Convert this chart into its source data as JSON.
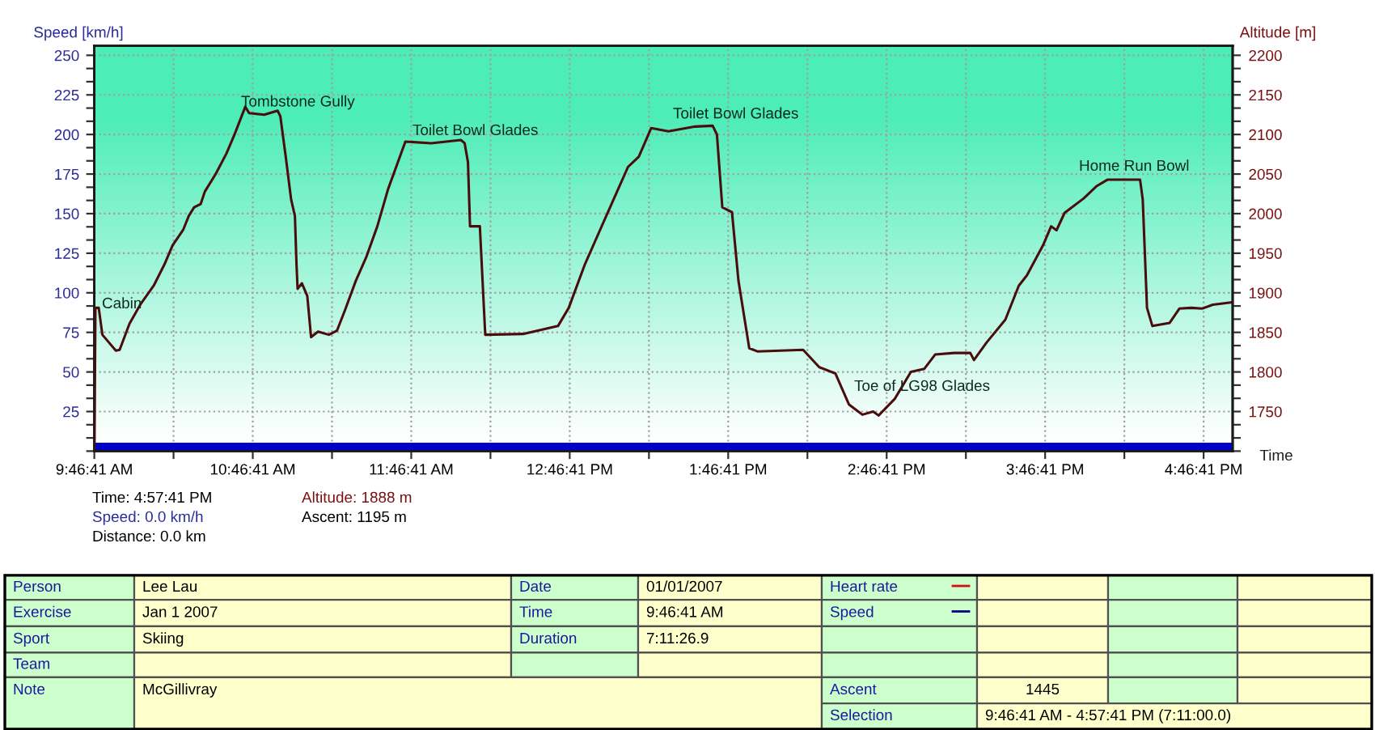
{
  "chart_data": {
    "type": "line",
    "xlabel": "Time",
    "ylabel": "Speed [km/h]",
    "y2label": "Altitude [m]",
    "annotations": [
      "Cabin",
      "Tombstone Gully",
      "Toilet Bowl Glades",
      "Toilet Bowl Glades",
      "Toe of LG98 Glades",
      "Home Run Bowl",
      "Time: 4:57:41 PM",
      "Speed: 0.0 km/h",
      "Distance: 0.0 km",
      "Altitude: 1888 m",
      "Ascent: 1195 m",
      "Person",
      "Lee Lau",
      "Date",
      "01/01/2007",
      "Heart rate",
      "Exercise",
      "Jan 1 2007",
      "Time",
      "9:46:41 AM",
      "Speed",
      "Sport",
      "Skiing",
      "Duration",
      "7:11:26.9",
      "Team",
      "Note",
      "McGillivray",
      "Ascent",
      "1445",
      "Selection",
      "9:46:41 AM - 4:57:41 PM (7:11:00.0)"
    ],
    "series": [
      {
        "axis": "y2",
        "color": "#4a0d0d",
        "x": [
          9.779,
          9.785,
          9.806,
          9.829,
          9.914,
          9.938,
          10.0,
          10.068,
          10.153,
          10.221,
          10.272,
          10.34,
          10.374,
          10.408,
          10.449,
          10.476,
          10.544,
          10.612,
          10.663,
          10.731,
          10.755,
          10.85,
          10.935,
          10.952,
          10.986,
          11.02,
          11.044,
          11.054,
          11.061,
          11.088,
          11.122,
          11.146,
          11.19,
          11.258,
          11.309,
          11.36,
          11.428,
          11.496,
          11.564,
          11.632,
          11.683,
          11.741,
          11.904,
          12.091,
          12.115,
          12.136,
          12.149,
          12.211,
          12.245,
          12.483,
          12.704,
          12.772,
          12.874,
          12.993,
          13.146,
          13.214,
          13.292,
          13.401,
          13.571,
          13.68,
          13.707,
          13.741,
          13.802,
          13.843,
          13.911,
          13.962,
          14.251,
          14.353,
          14.455,
          14.54,
          14.625,
          14.693,
          14.727,
          14.829,
          14.931,
          15.016,
          15.084,
          15.204,
          15.306,
          15.329,
          15.408,
          15.527,
          15.612,
          15.663,
          15.765,
          15.816,
          15.85,
          15.901,
          16.02,
          16.105,
          16.173,
          16.377,
          16.394,
          16.421,
          16.455,
          16.564,
          16.625,
          16.7,
          16.768,
          16.836,
          16.959
        ],
        "values": [
          1700,
          1881,
          1881,
          1847,
          1827,
          1828,
          1861,
          1885,
          1909,
          1936,
          1960,
          1980,
          1997,
          2008,
          2012,
          2028,
          2050,
          2076,
          2100,
          2135,
          2127,
          2125,
          2130,
          2123,
          2072,
          2018,
          1997,
          1936,
          1905,
          1912,
          1896,
          1844,
          1851,
          1847,
          1852,
          1878,
          1915,
          1946,
          1984,
          2031,
          2059,
          2091,
          2089,
          2093,
          2089,
          2065,
          1984,
          1984,
          1847,
          1848,
          1858,
          1881,
          1936,
          1990,
          2059,
          2072,
          2108,
          2104,
          2110,
          2111,
          2100,
          2008,
          2002,
          1915,
          1830,
          1826,
          1828,
          1806,
          1798,
          1759,
          1746,
          1750,
          1745,
          1766,
          1800,
          1804,
          1822,
          1824,
          1824,
          1815,
          1837,
          1866,
          1909,
          1922,
          1960,
          1984,
          1979,
          2001,
          2019,
          2035,
          2043,
          2043,
          2018,
          1881,
          1858,
          1862,
          1880,
          1881,
          1880,
          1885,
          1888
        ]
      },
      {
        "color": "#0000c8",
        "x": [
          9.7781,
          16.9614
        ],
        "values": [
          0,
          0
        ]
      }
    ],
    "xlim": [
      9.7781,
      16.9614
    ],
    "xticks": [
      {
        "value": 9.7781,
        "label": "9:46:41 AM"
      },
      {
        "value": 10.2781,
        "label": null
      },
      {
        "value": 10.7781,
        "label": "10:46:41 AM"
      },
      {
        "value": 11.2781,
        "label": null
      },
      {
        "value": 11.7781,
        "label": "11:46:41 AM"
      },
      {
        "value": 12.2781,
        "label": null
      },
      {
        "value": 12.7781,
        "label": "12:46:41 PM"
      },
      {
        "value": 13.2781,
        "label": null
      },
      {
        "value": 13.7781,
        "label": "1:46:41 PM"
      },
      {
        "value": 14.2781,
        "label": null
      },
      {
        "value": 14.7781,
        "label": "2:46:41 PM"
      },
      {
        "value": 15.2781,
        "label": null
      },
      {
        "value": 15.7781,
        "label": "3:46:41 PM"
      },
      {
        "value": 16.2781,
        "label": null
      },
      {
        "value": 16.7781,
        "label": "4:46:41 PM"
      }
    ],
    "ylim": [
      0,
      256
    ],
    "yticks": [
      25,
      50,
      75,
      100,
      125,
      150,
      175,
      200,
      225,
      250
    ],
    "y2lim": [
      1700,
      2212
    ],
    "y2ticks": [
      1750,
      1800,
      1850,
      1900,
      1950,
      2000,
      2050,
      2100,
      2150,
      2200
    ],
    "grid": true
  }
}
